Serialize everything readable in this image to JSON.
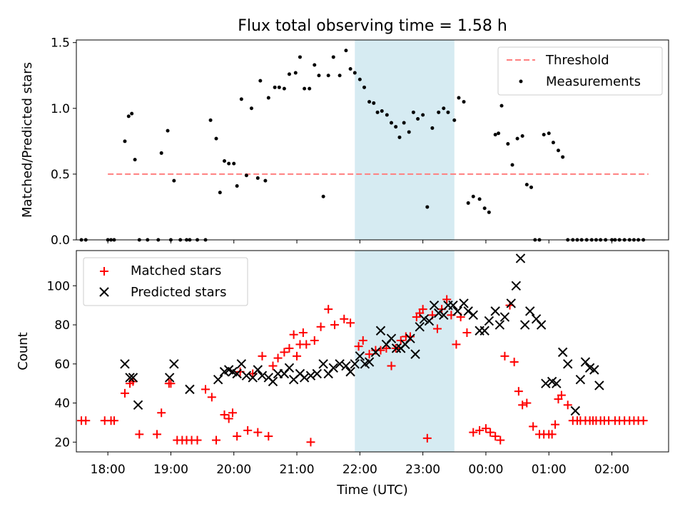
{
  "chart_data": [
    {
      "type": "scatter",
      "title": "Flux total observing time = 1.58 h",
      "xlabel": "",
      "ylabel": "Matched/Predicted stars",
      "xlim": [
        -0.5,
        8.9
      ],
      "ylim": [
        0,
        1.52
      ],
      "y_ticks": [
        0.0,
        0.5,
        1.0,
        1.5
      ],
      "y_tick_labels": [
        "0.0",
        "0.5",
        "1.0",
        "1.5"
      ],
      "highlight": {
        "x_start": 3.92,
        "x_end": 5.5,
        "color": "#add8e6"
      },
      "legend": {
        "position": "top-right",
        "entries": [
          "Threshold",
          "Measurements"
        ]
      },
      "series": [
        {
          "name": "Threshold",
          "style": "dashed-line",
          "color": "#ff7f7f",
          "x": [
            0.0,
            8.58
          ],
          "y": [
            0.5,
            0.5
          ]
        },
        {
          "name": "Measurements",
          "style": "dots",
          "color": "#000000",
          "x": [
            -0.42,
            -0.35,
            0.0,
            0.05,
            0.1,
            0.27,
            0.33,
            0.38,
            0.43,
            0.5,
            0.63,
            0.8,
            0.85,
            0.95,
            1.0,
            1.05,
            1.15,
            1.25,
            1.3,
            1.42,
            1.55,
            1.63,
            1.72,
            1.78,
            1.85,
            1.92,
            2.0,
            2.05,
            2.12,
            2.2,
            2.28,
            2.38,
            2.42,
            2.5,
            2.55,
            2.65,
            2.72,
            2.8,
            2.88,
            2.98,
            3.05,
            3.12,
            3.2,
            3.28,
            3.35,
            3.42,
            3.5,
            3.58,
            3.68,
            3.78,
            3.85,
            3.92,
            4.0,
            4.07,
            4.15,
            4.22,
            4.28,
            4.35,
            4.43,
            4.5,
            4.57,
            4.63,
            4.7,
            4.78,
            4.85,
            4.92,
            5.0,
            5.07,
            5.15,
            5.25,
            5.33,
            5.4,
            5.5,
            5.57,
            5.65,
            5.72,
            5.8,
            5.9,
            5.98,
            6.05,
            6.15,
            6.2,
            6.25,
            6.35,
            6.42,
            6.5,
            6.58,
            6.65,
            6.72,
            6.78,
            6.85,
            6.92,
            7.0,
            7.07,
            7.15,
            7.22,
            7.3,
            7.38,
            7.45,
            7.52,
            7.6,
            7.68,
            7.75,
            7.82,
            7.9,
            8.0,
            8.05,
            8.12,
            8.2,
            8.28,
            8.35,
            8.42,
            8.5
          ],
          "y": [
            0.0,
            0.0,
            0.0,
            0.0,
            0.0,
            0.75,
            0.94,
            0.96,
            0.61,
            0.0,
            0.0,
            0.0,
            0.66,
            0.83,
            0.0,
            0.45,
            0.0,
            0.0,
            0.0,
            0.0,
            0.0,
            0.91,
            0.77,
            0.36,
            0.6,
            0.58,
            0.58,
            0.41,
            1.07,
            0.49,
            1.0,
            0.47,
            1.21,
            0.45,
            1.08,
            1.16,
            1.16,
            1.15,
            1.26,
            1.27,
            1.39,
            1.15,
            1.15,
            1.33,
            1.25,
            0.33,
            1.25,
            1.39,
            1.25,
            1.44,
            1.3,
            1.27,
            1.22,
            1.16,
            1.05,
            1.04,
            0.97,
            0.98,
            0.95,
            0.89,
            0.86,
            0.78,
            0.89,
            0.82,
            0.97,
            0.92,
            0.95,
            0.25,
            0.85,
            0.97,
            1.0,
            0.97,
            0.91,
            1.08,
            1.05,
            0.28,
            0.33,
            0.31,
            0.24,
            0.21,
            0.8,
            0.81,
            1.02,
            0.73,
            0.57,
            0.77,
            0.79,
            0.42,
            0.4,
            0.0,
            0.0,
            0.8,
            0.81,
            0.74,
            0.68,
            0.63,
            0.0,
            0.0,
            0.0,
            0.0,
            0.0,
            0.0,
            0.0,
            0.0,
            0.0,
            0.0,
            0.0,
            0.0,
            0.0,
            0.0,
            0.0,
            0.0,
            0.0
          ]
        }
      ]
    },
    {
      "type": "scatter",
      "title": "",
      "xlabel": "Time (UTC)",
      "ylabel": "Count",
      "xlim": [
        -0.5,
        8.9
      ],
      "ylim": [
        15,
        118
      ],
      "y_ticks": [
        20,
        40,
        60,
        80,
        100
      ],
      "y_tick_labels": [
        "20",
        "40",
        "60",
        "80",
        "100"
      ],
      "x_ticks": [
        0,
        1,
        2,
        3,
        4,
        5,
        6,
        7,
        8
      ],
      "x_tick_labels": [
        "18:00",
        "19:00",
        "20:00",
        "21:00",
        "22:00",
        "23:00",
        "00:00",
        "01:00",
        "02:00"
      ],
      "highlight": {
        "x_start": 3.92,
        "x_end": 5.5,
        "color": "#add8e6"
      },
      "legend": {
        "position": "top-left",
        "entries": [
          "Matched stars",
          "Predicted stars"
        ]
      },
      "series": [
        {
          "name": "Matched stars",
          "marker": "plus",
          "color": "#ff0000",
          "x": [
            -0.42,
            -0.35,
            -0.05,
            0.05,
            0.1,
            0.27,
            0.35,
            0.4,
            0.5,
            0.78,
            0.85,
            0.97,
            1.0,
            1.1,
            1.18,
            1.25,
            1.33,
            1.42,
            1.55,
            1.65,
            1.72,
            1.85,
            1.92,
            1.98,
            2.05,
            2.1,
            2.22,
            2.3,
            2.38,
            2.45,
            2.55,
            2.62,
            2.7,
            2.8,
            2.88,
            2.95,
            3.0,
            3.05,
            3.1,
            3.15,
            3.22,
            3.28,
            3.38,
            3.5,
            3.6,
            3.75,
            3.85,
            3.98,
            4.05,
            4.15,
            4.25,
            4.33,
            4.42,
            4.5,
            4.57,
            4.65,
            4.73,
            4.8,
            4.9,
            4.95,
            5.0,
            5.07,
            5.15,
            5.23,
            5.3,
            5.38,
            5.45,
            5.53,
            5.6,
            5.7,
            5.8,
            5.9,
            6.0,
            6.07,
            6.15,
            6.23,
            6.3,
            6.38,
            6.45,
            6.52,
            6.58,
            6.65,
            6.75,
            6.85,
            6.92,
            7.0,
            7.05,
            7.1,
            7.15,
            7.2,
            7.3,
            7.38,
            7.45,
            7.5,
            7.58,
            7.65,
            7.7,
            7.75,
            7.82,
            7.88,
            7.95,
            8.05,
            8.12,
            8.2,
            8.28,
            8.35,
            8.42,
            8.5
          ],
          "y": [
            31,
            31,
            31,
            31,
            31,
            45,
            50,
            51,
            24,
            24,
            35,
            50,
            50,
            21,
            21,
            21,
            21,
            21,
            47,
            43,
            21,
            34,
            32,
            35,
            23,
            56,
            26,
            55,
            25,
            64,
            23,
            59,
            63,
            66,
            68,
            75,
            64,
            70,
            76,
            70,
            20,
            72,
            79,
            88,
            80,
            83,
            81,
            69,
            72,
            65,
            67,
            67,
            68,
            59,
            68,
            72,
            74,
            74,
            84,
            86,
            88,
            22,
            85,
            78,
            88,
            93,
            85,
            70,
            84,
            76,
            25,
            26,
            27,
            25,
            23,
            21,
            64,
            90,
            61,
            46,
            39,
            40,
            28,
            24,
            24,
            24,
            24,
            29,
            42,
            44,
            39,
            31,
            31,
            31,
            31,
            31,
            31,
            31,
            31,
            31,
            31,
            31,
            31,
            31,
            31,
            31,
            31,
            31
          ],
          "_note_x_y_pairing": "y values paired by index with x"
        },
        {
          "name": "Predicted stars",
          "marker": "x",
          "color": "#000000",
          "x": [
            0.27,
            0.35,
            0.4,
            0.48,
            0.98,
            1.05,
            1.3,
            1.75,
            1.85,
            1.92,
            1.98,
            2.05,
            2.12,
            2.2,
            2.3,
            2.38,
            2.45,
            2.55,
            2.62,
            2.7,
            2.8,
            2.88,
            2.95,
            3.05,
            3.12,
            3.22,
            3.32,
            3.42,
            3.5,
            3.58,
            3.68,
            3.78,
            3.85,
            3.92,
            4.0,
            4.08,
            4.15,
            4.25,
            4.33,
            4.42,
            4.5,
            4.58,
            4.65,
            4.72,
            4.8,
            4.88,
            4.95,
            5.02,
            5.1,
            5.18,
            5.25,
            5.33,
            5.4,
            5.48,
            5.55,
            5.65,
            5.72,
            5.8,
            5.9,
            5.98,
            6.05,
            6.15,
            6.22,
            6.3,
            6.4,
            6.48,
            6.55,
            6.62,
            6.7,
            6.8,
            6.88,
            6.95,
            7.05,
            7.12,
            7.22,
            7.3,
            7.42,
            7.5,
            7.58,
            7.65,
            7.72,
            7.8
          ],
          "y": [
            60,
            53,
            53,
            39,
            53,
            60,
            47,
            52,
            56,
            57,
            56,
            55,
            60,
            54,
            53,
            57,
            54,
            53,
            51,
            55,
            55,
            58,
            52,
            55,
            53,
            54,
            55,
            60,
            55,
            58,
            60,
            59,
            56,
            60,
            64,
            60,
            61,
            66,
            77,
            70,
            73,
            68,
            68,
            70,
            73,
            65,
            79,
            83,
            82,
            90,
            86,
            85,
            90,
            90,
            87,
            91,
            87,
            85,
            77,
            77,
            82,
            87,
            80,
            84,
            91,
            100,
            114,
            80,
            87,
            83,
            80,
            50,
            51,
            50,
            66,
            60,
            36,
            52,
            61,
            58,
            57,
            49
          ]
        }
      ]
    }
  ]
}
